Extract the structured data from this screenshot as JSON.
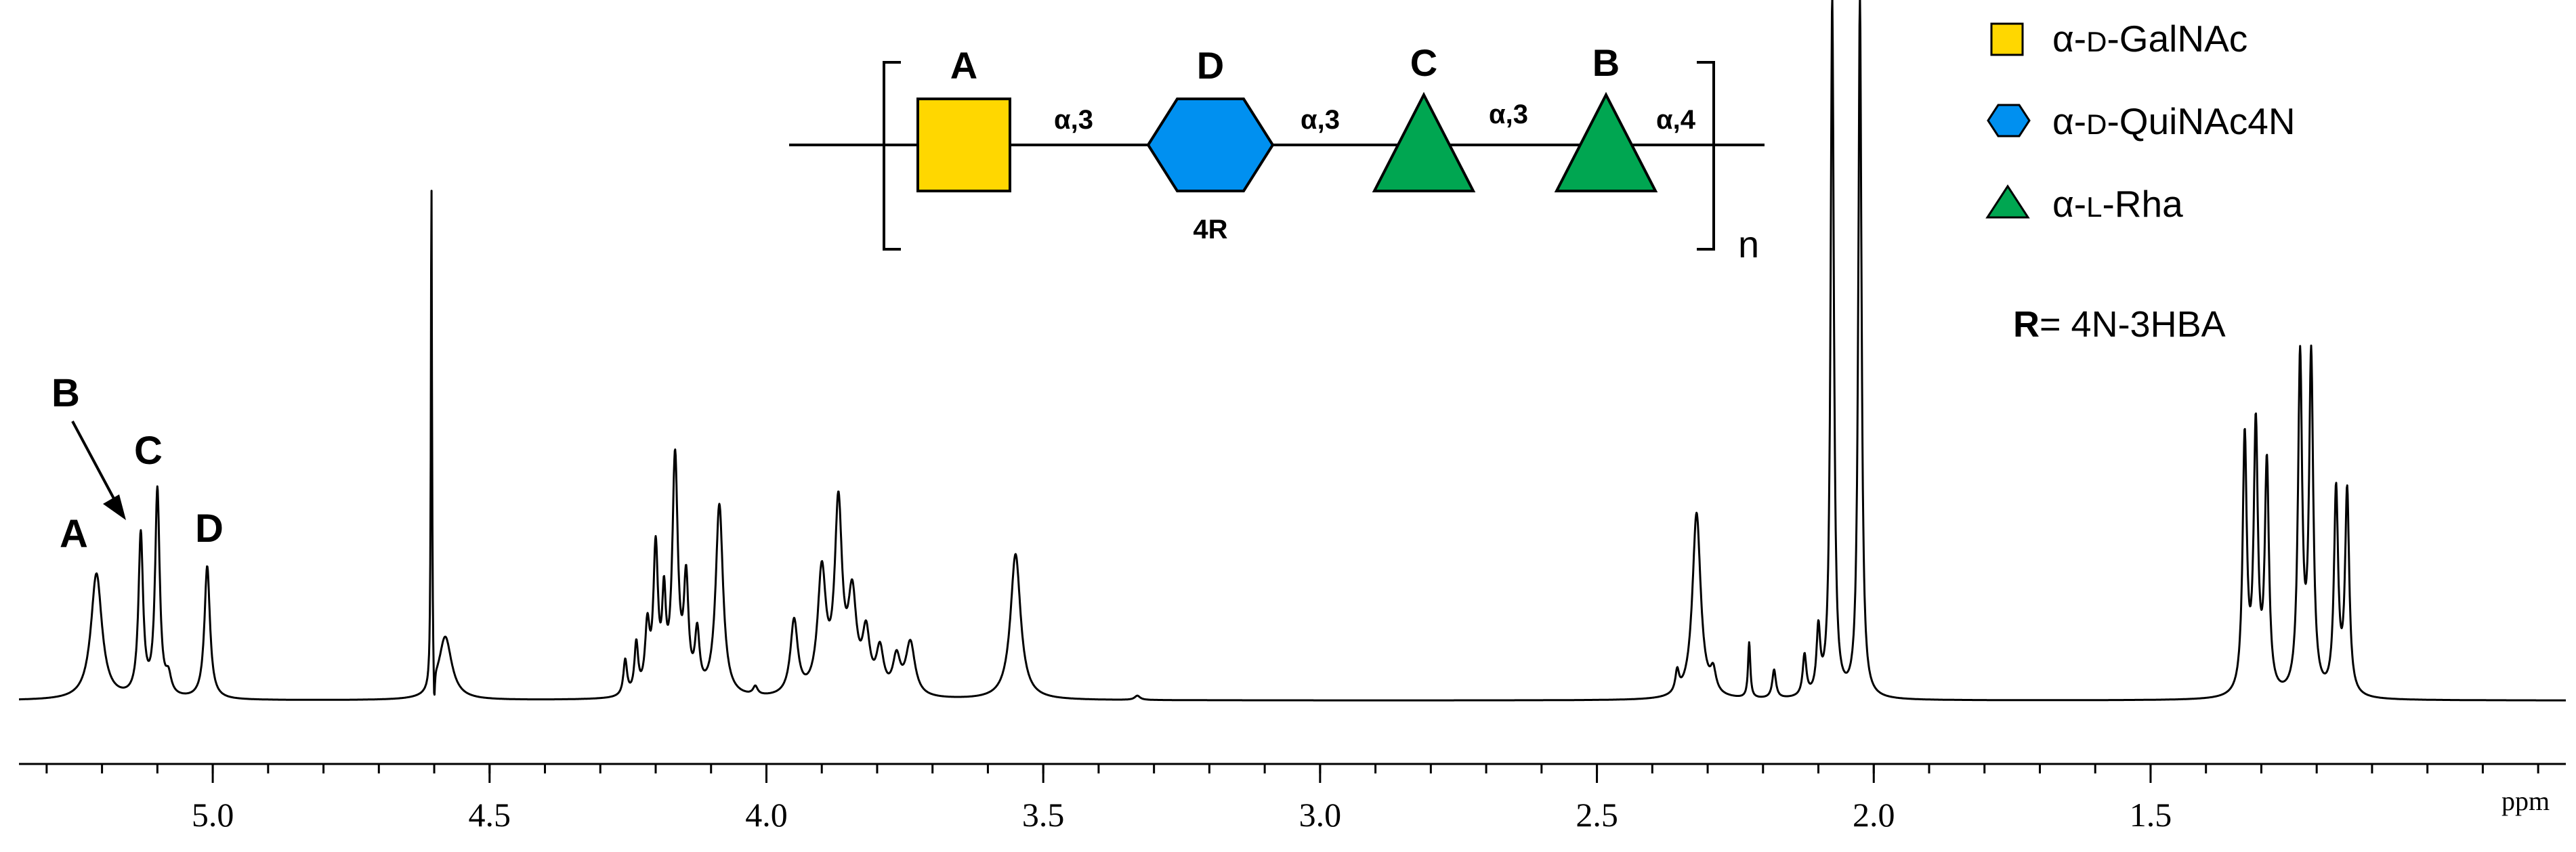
{
  "chart_data": {
    "type": "line",
    "xlabel": "ppm",
    "xlim": [
      5.35,
      0.75
    ],
    "x_reversed": true,
    "ylim": [
      0,
      1.0
    ],
    "x_ticks": [
      {
        "value": 5.0,
        "label": "5.0"
      },
      {
        "value": 4.5,
        "label": "4.5"
      },
      {
        "value": 4.0,
        "label": "4.0"
      },
      {
        "value": 3.5,
        "label": "3.5"
      },
      {
        "value": 3.0,
        "label": "3.0"
      },
      {
        "value": 2.5,
        "label": "2.5"
      },
      {
        "value": 2.0,
        "label": "2.0"
      },
      {
        "value": 1.5,
        "label": "1.5"
      }
    ],
    "baseline": 0.032,
    "peaks": [
      {
        "ppm": 5.21,
        "height": 0.177,
        "width": 0.012
      },
      {
        "ppm": 5.13,
        "height": 0.227,
        "width": 0.005
      },
      {
        "ppm": 5.1,
        "height": 0.29,
        "width": 0.005
      },
      {
        "ppm": 5.08,
        "height": 0.025,
        "width": 0.006
      },
      {
        "ppm": 5.01,
        "height": 0.187,
        "width": 0.006
      },
      {
        "ppm": 4.605,
        "height": 0.72,
        "width": 0.0012
      },
      {
        "ppm": 4.6,
        "height": -0.062,
        "width": 0.0015
      },
      {
        "ppm": 4.58,
        "height": 0.088,
        "width": 0.014
      },
      {
        "ppm": 4.255,
        "height": 0.05,
        "width": 0.004
      },
      {
        "ppm": 4.235,
        "height": 0.07,
        "width": 0.004
      },
      {
        "ppm": 4.215,
        "height": 0.09,
        "width": 0.005
      },
      {
        "ppm": 4.2,
        "height": 0.2,
        "width": 0.005
      },
      {
        "ppm": 4.185,
        "height": 0.12,
        "width": 0.004
      },
      {
        "ppm": 4.165,
        "height": 0.33,
        "width": 0.006
      },
      {
        "ppm": 4.145,
        "height": 0.15,
        "width": 0.005
      },
      {
        "ppm": 4.125,
        "height": 0.08,
        "width": 0.005
      },
      {
        "ppm": 4.085,
        "height": 0.27,
        "width": 0.008
      },
      {
        "ppm": 4.02,
        "height": 0.012,
        "width": 0.005
      },
      {
        "ppm": 3.95,
        "height": 0.105,
        "width": 0.008
      },
      {
        "ppm": 3.9,
        "height": 0.17,
        "width": 0.009
      },
      {
        "ppm": 3.87,
        "height": 0.26,
        "width": 0.008
      },
      {
        "ppm": 3.845,
        "height": 0.13,
        "width": 0.009
      },
      {
        "ppm": 3.82,
        "height": 0.08,
        "width": 0.008
      },
      {
        "ppm": 3.795,
        "height": 0.06,
        "width": 0.008
      },
      {
        "ppm": 3.765,
        "height": 0.05,
        "width": 0.008
      },
      {
        "ppm": 3.74,
        "height": 0.075,
        "width": 0.01
      },
      {
        "ppm": 3.55,
        "height": 0.205,
        "width": 0.011
      },
      {
        "ppm": 3.33,
        "height": 0.006,
        "width": 0.006
      },
      {
        "ppm": 2.355,
        "height": 0.03,
        "width": 0.004
      },
      {
        "ppm": 2.32,
        "height": 0.262,
        "width": 0.009
      },
      {
        "ppm": 2.29,
        "height": 0.03,
        "width": 0.006
      },
      {
        "ppm": 2.225,
        "height": 0.078,
        "width": 0.0025
      },
      {
        "ppm": 2.18,
        "height": 0.04,
        "width": 0.004
      },
      {
        "ppm": 2.125,
        "height": 0.058,
        "width": 0.004
      },
      {
        "ppm": 2.1,
        "height": 0.09,
        "width": 0.004
      },
      {
        "ppm": 2.075,
        "height": 0.985,
        "width": 0.0035
      },
      {
        "ppm": 2.025,
        "height": 0.985,
        "width": 0.0035
      },
      {
        "ppm": 1.33,
        "height": 0.36,
        "width": 0.0045
      },
      {
        "ppm": 1.31,
        "height": 0.37,
        "width": 0.0045
      },
      {
        "ppm": 1.29,
        "height": 0.32,
        "width": 0.0045
      },
      {
        "ppm": 1.23,
        "height": 0.47,
        "width": 0.0045
      },
      {
        "ppm": 1.21,
        "height": 0.47,
        "width": 0.0045
      },
      {
        "ppm": 1.165,
        "height": 0.285,
        "width": 0.0045
      },
      {
        "ppm": 1.145,
        "height": 0.285,
        "width": 0.0045
      }
    ],
    "annotations": [
      {
        "text": "A",
        "ppm": 5.21
      },
      {
        "text": "B",
        "ppm": 5.13
      },
      {
        "text": "C",
        "ppm": 5.1
      },
      {
        "text": "D",
        "ppm": 5.01
      }
    ]
  },
  "structure": {
    "residues": [
      {
        "label": "A",
        "shape": "square",
        "color": "#FFD700"
      },
      {
        "label": "D",
        "shape": "hexagon",
        "color": "#0090F0",
        "sub_label": "4R"
      },
      {
        "label": "C",
        "shape": "triangle",
        "color": "#00A651"
      },
      {
        "label": "B",
        "shape": "triangle",
        "color": "#00A651"
      }
    ],
    "linkages": [
      {
        "glyph": "α",
        "position": ",3"
      },
      {
        "glyph": "α",
        "position": ",3"
      },
      {
        "glyph": "α",
        "position": ",3"
      },
      {
        "glyph": "α",
        "position": ",4"
      }
    ],
    "repeat_label": "n"
  },
  "legend": [
    {
      "symbol": "square",
      "color": "#FFD700",
      "prefix": "α-",
      "config": "D",
      "name": "-GalNAc"
    },
    {
      "symbol": "hexagon",
      "color": "#0090F0",
      "prefix": "α-",
      "config": "D",
      "name": "-QuiNAc4N"
    },
    {
      "symbol": "triangle",
      "color": "#00A651",
      "prefix": "α-",
      "config": "L",
      "name": "-Rha"
    }
  ],
  "r_definition": {
    "bold": "R",
    "rest": "= 4N-3HBA"
  }
}
